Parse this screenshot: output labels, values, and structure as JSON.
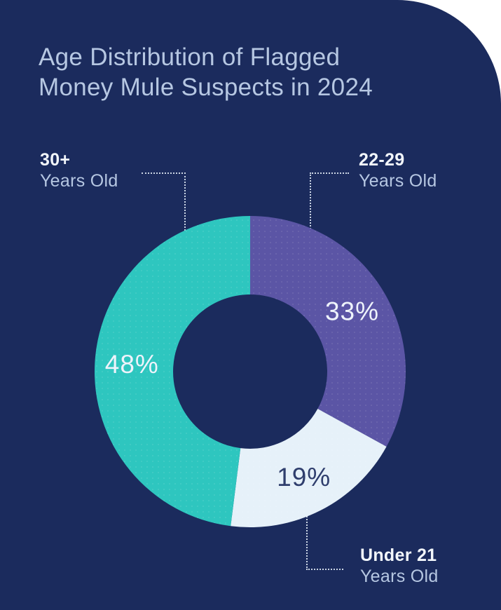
{
  "title_lines": [
    "Age Distribution of Flagged",
    "Money Mule Suspects in 2024"
  ],
  "colors": {
    "background": "#1b2b5d",
    "title_text": "#b6c7e2",
    "callout_title_text": "#f2f6fb",
    "callout_subtitle_text": "#b6c7e2",
    "leader_line": "#dfe8f3"
  },
  "callouts": [
    {
      "title": "30+",
      "subtitle": "Years Old"
    },
    {
      "title": "22-29",
      "subtitle": "Years Old"
    },
    {
      "title": "Under 21",
      "subtitle": "Years Old"
    }
  ],
  "chart_data": {
    "type": "pie",
    "variant": "donut",
    "title": "Age Distribution of Flagged Money Mule Suspects in 2024",
    "start_angle_deg": 0,
    "direction": "clockwise",
    "legend_position": "callout-labels",
    "segments": [
      {
        "slug": "22-29",
        "label": "22-29 Years Old",
        "value_pct": 33,
        "color": "#5b55a5",
        "label_text": "33%",
        "label_text_color": "#eef3fb"
      },
      {
        "slug": "under-21",
        "label": "Under 21 Years Old",
        "value_pct": 19,
        "color": "#e6f1f9",
        "label_text": "19%",
        "label_text_color": "#2f3e6d"
      },
      {
        "slug": "30-plus",
        "label": "30+ Years Old",
        "value_pct": 48,
        "color": "#2ec6bf",
        "label_text": "48%",
        "label_text_color": "#eef3fb"
      }
    ]
  }
}
